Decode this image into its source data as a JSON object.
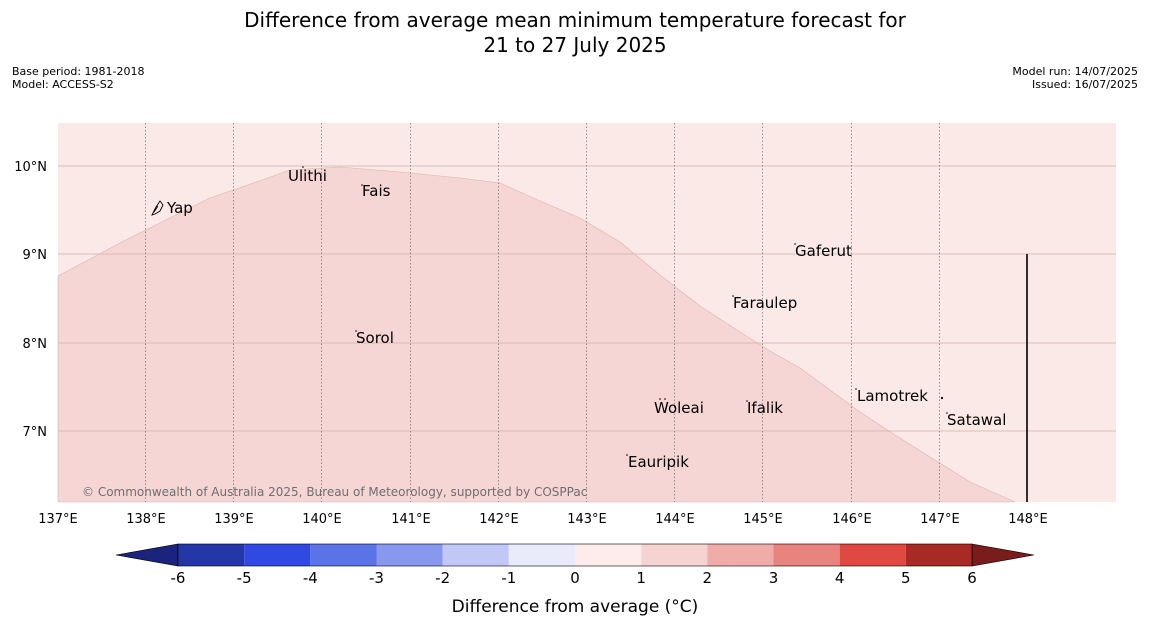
{
  "title": {
    "line1": "Difference from average mean minimum temperature forecast for",
    "line2": "21 to 27 July 2025"
  },
  "meta": {
    "base_period": "Base period: 1981-2018",
    "model": "Model: ACCESS-S2",
    "model_run": "Model run: 14/07/2025",
    "issued": "Issued: 16/07/2025"
  },
  "map": {
    "lat_labels": [
      "10°N",
      "9°N",
      "8°N",
      "7°N"
    ],
    "lon_labels": [
      "137°E",
      "138°E",
      "139°E",
      "140°E",
      "141°E",
      "142°E",
      "143°E",
      "144°E",
      "145°E",
      "146°E",
      "147°E",
      "148°E"
    ],
    "places": [
      "Yap",
      "Ulithi",
      "Fais",
      "Gaferut",
      "Faraulep",
      "Sorol",
      "Lamotrek",
      "Woleai",
      "Ifalik",
      "Satawal",
      "Eauripik"
    ],
    "regions": [
      {
        "category": "0 to 1",
        "color": "#fbe9e8"
      },
      {
        "category": "1 to 2",
        "color": "#f5d6d4"
      }
    ],
    "copyright": "© Commonwealth of Australia 2025, Bureau of Meteorology, supported by COSPPac"
  },
  "colorbar": {
    "title": "Difference from average (°C)",
    "tick_labels": [
      "-6",
      "-5",
      "-4",
      "-3",
      "-2",
      "-1",
      "0",
      "1",
      "2",
      "3",
      "4",
      "5",
      "6"
    ],
    "under_color": "#1a237e",
    "over_color": "#7b1c1c",
    "colors": [
      "#2337a8",
      "#3049e0",
      "#5a73e6",
      "#8898ee",
      "#c2c8f6",
      "#e9ebfb",
      "#fdeceb",
      "#f6d3d1",
      "#efaca8",
      "#e8837d",
      "#de4a41",
      "#a82a25"
    ]
  }
}
